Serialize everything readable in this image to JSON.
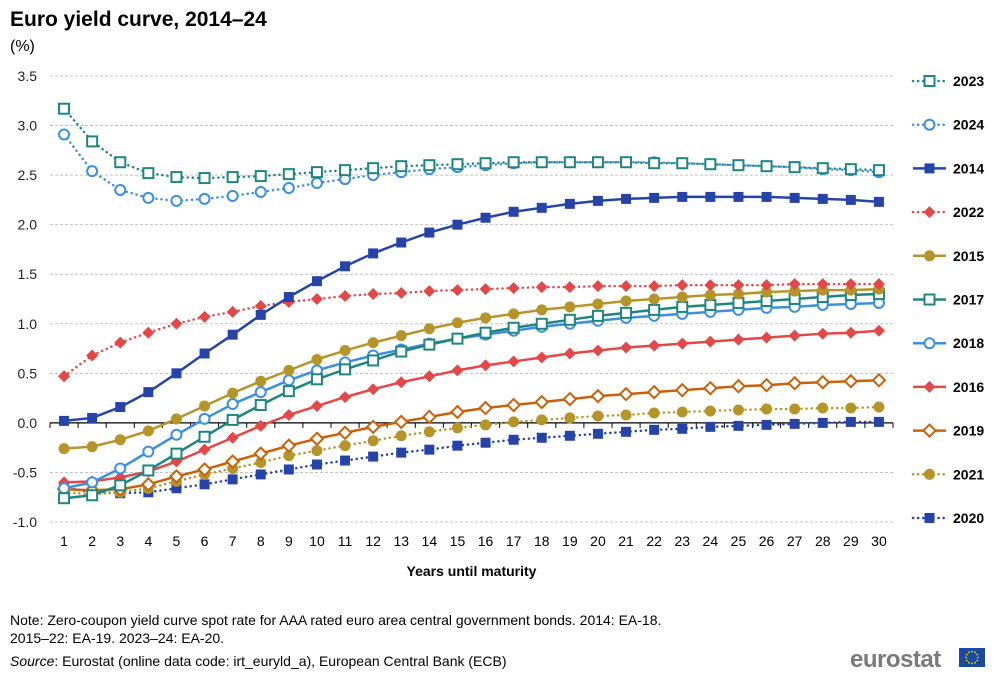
{
  "chart_data": {
    "type": "line",
    "title": "Euro yield curve, 2014–24",
    "ylabel": "(%)",
    "xlabel": "Years until maturity",
    "ylim": [
      -1.0,
      3.5
    ],
    "yticks": [
      "3.5",
      "3.0",
      "2.5",
      "2.0",
      "1.5",
      "1.0",
      "0.5",
      "0.0",
      "-0.5",
      "-1.0"
    ],
    "ytick_values": [
      3.5,
      3.0,
      2.5,
      2.0,
      1.5,
      1.0,
      0.5,
      0.0,
      -0.5,
      -1.0
    ],
    "x": [
      1,
      2,
      3,
      4,
      5,
      6,
      7,
      8,
      9,
      10,
      11,
      12,
      13,
      14,
      15,
      16,
      17,
      18,
      19,
      20,
      21,
      22,
      23,
      24,
      25,
      26,
      27,
      28,
      29,
      30
    ],
    "grid": true,
    "legend_position": "right",
    "series": [
      {
        "name": "2023",
        "color": "#1f8580",
        "dash": "dotted",
        "marker": "square-open",
        "values": [
          3.17,
          2.84,
          2.63,
          2.52,
          2.48,
          2.47,
          2.48,
          2.49,
          2.51,
          2.53,
          2.55,
          2.57,
          2.59,
          2.6,
          2.61,
          2.62,
          2.63,
          2.63,
          2.63,
          2.63,
          2.63,
          2.62,
          2.62,
          2.61,
          2.6,
          2.59,
          2.58,
          2.57,
          2.56,
          2.55
        ]
      },
      {
        "name": "2024",
        "color": "#3b8ee0",
        "dash": "dotted",
        "marker": "circle-open",
        "values": [
          2.91,
          2.54,
          2.35,
          2.27,
          2.24,
          2.26,
          2.29,
          2.33,
          2.37,
          2.42,
          2.46,
          2.5,
          2.53,
          2.56,
          2.58,
          2.6,
          2.62,
          2.63,
          2.63,
          2.63,
          2.63,
          2.63,
          2.62,
          2.61,
          2.6,
          2.59,
          2.58,
          2.56,
          2.55,
          2.53
        ]
      },
      {
        "name": "2014",
        "color": "#2644a8",
        "dash": "solid",
        "marker": "square",
        "values": [
          0.02,
          0.05,
          0.16,
          0.31,
          0.5,
          0.7,
          0.89,
          1.09,
          1.27,
          1.43,
          1.58,
          1.71,
          1.82,
          1.92,
          2.0,
          2.07,
          2.13,
          2.17,
          2.21,
          2.24,
          2.26,
          2.27,
          2.28,
          2.28,
          2.28,
          2.28,
          2.27,
          2.26,
          2.25,
          2.23
        ]
      },
      {
        "name": "2022",
        "color": "#e34848",
        "dash": "dotted",
        "marker": "diamond",
        "values": [
          0.47,
          0.68,
          0.81,
          0.91,
          1.0,
          1.07,
          1.12,
          1.18,
          1.22,
          1.25,
          1.28,
          1.3,
          1.31,
          1.33,
          1.34,
          1.35,
          1.36,
          1.37,
          1.37,
          1.38,
          1.38,
          1.38,
          1.39,
          1.39,
          1.39,
          1.39,
          1.4,
          1.4,
          1.4,
          1.4
        ]
      },
      {
        "name": "2015",
        "color": "#b5952a",
        "dash": "solid",
        "marker": "circle",
        "values": [
          -0.26,
          -0.24,
          -0.17,
          -0.08,
          0.04,
          0.17,
          0.3,
          0.42,
          0.53,
          0.64,
          0.73,
          0.81,
          0.88,
          0.95,
          1.01,
          1.06,
          1.1,
          1.14,
          1.17,
          1.2,
          1.23,
          1.25,
          1.27,
          1.29,
          1.3,
          1.32,
          1.33,
          1.34,
          1.34,
          1.35
        ]
      },
      {
        "name": "2017",
        "color": "#1f8580",
        "dash": "solid",
        "marker": "square-open",
        "values": [
          -0.76,
          -0.73,
          -0.63,
          -0.48,
          -0.31,
          -0.14,
          0.03,
          0.18,
          0.32,
          0.44,
          0.54,
          0.63,
          0.72,
          0.79,
          0.85,
          0.91,
          0.96,
          1.0,
          1.04,
          1.08,
          1.11,
          1.14,
          1.17,
          1.19,
          1.21,
          1.23,
          1.25,
          1.27,
          1.29,
          1.3
        ]
      },
      {
        "name": "2018",
        "color": "#3b8ee0",
        "dash": "solid",
        "marker": "circle-open",
        "values": [
          -0.66,
          -0.6,
          -0.46,
          -0.29,
          -0.12,
          0.04,
          0.19,
          0.31,
          0.43,
          0.53,
          0.61,
          0.68,
          0.74,
          0.8,
          0.85,
          0.89,
          0.93,
          0.97,
          1.0,
          1.03,
          1.06,
          1.08,
          1.1,
          1.12,
          1.14,
          1.16,
          1.17,
          1.19,
          1.2,
          1.21
        ]
      },
      {
        "name": "2016",
        "color": "#e34848",
        "dash": "solid",
        "marker": "diamond",
        "values": [
          -0.6,
          -0.59,
          -0.55,
          -0.49,
          -0.39,
          -0.27,
          -0.15,
          -0.03,
          0.08,
          0.17,
          0.26,
          0.34,
          0.41,
          0.47,
          0.53,
          0.58,
          0.62,
          0.66,
          0.7,
          0.73,
          0.76,
          0.78,
          0.8,
          0.82,
          0.84,
          0.86,
          0.88,
          0.9,
          0.91,
          0.93
        ]
      },
      {
        "name": "2019",
        "color": "#c8620a",
        "dash": "solid",
        "marker": "diamond-open",
        "values": [
          -0.67,
          -0.68,
          -0.67,
          -0.62,
          -0.54,
          -0.47,
          -0.39,
          -0.31,
          -0.23,
          -0.16,
          -0.1,
          -0.04,
          0.01,
          0.06,
          0.11,
          0.15,
          0.18,
          0.21,
          0.24,
          0.27,
          0.29,
          0.31,
          0.33,
          0.35,
          0.37,
          0.38,
          0.4,
          0.41,
          0.42,
          0.43
        ]
      },
      {
        "name": "2021",
        "color": "#b5952a",
        "dash": "dotted",
        "marker": "circle",
        "values": [
          -0.7,
          -0.72,
          -0.7,
          -0.66,
          -0.59,
          -0.52,
          -0.46,
          -0.4,
          -0.33,
          -0.28,
          -0.23,
          -0.18,
          -0.13,
          -0.09,
          -0.05,
          -0.02,
          0.01,
          0.03,
          0.05,
          0.07,
          0.08,
          0.1,
          0.11,
          0.12,
          0.13,
          0.14,
          0.14,
          0.15,
          0.15,
          0.16
        ]
      },
      {
        "name": "2020",
        "color": "#2644a8",
        "dash": "dotted",
        "marker": "square",
        "values": [
          -0.65,
          -0.7,
          -0.71,
          -0.7,
          -0.66,
          -0.62,
          -0.57,
          -0.52,
          -0.47,
          -0.42,
          -0.38,
          -0.34,
          -0.3,
          -0.27,
          -0.23,
          -0.2,
          -0.17,
          -0.15,
          -0.13,
          -0.11,
          -0.09,
          -0.07,
          -0.06,
          -0.04,
          -0.03,
          -0.02,
          -0.01,
          0.0,
          0.01,
          0.01
        ]
      }
    ]
  },
  "notes": {
    "line1": "Note: Zero-coupon yield curve spot rate for AAA rated euro area central government bonds. 2014: EA-18.",
    "line2": "2015–22: EA-19. 2023–24: EA-20.",
    "source_label": "Source",
    "source_text": ": Eurostat (online data code: irt_euryld_a),  European Central Bank (ECB)"
  },
  "logo": "eurostat"
}
